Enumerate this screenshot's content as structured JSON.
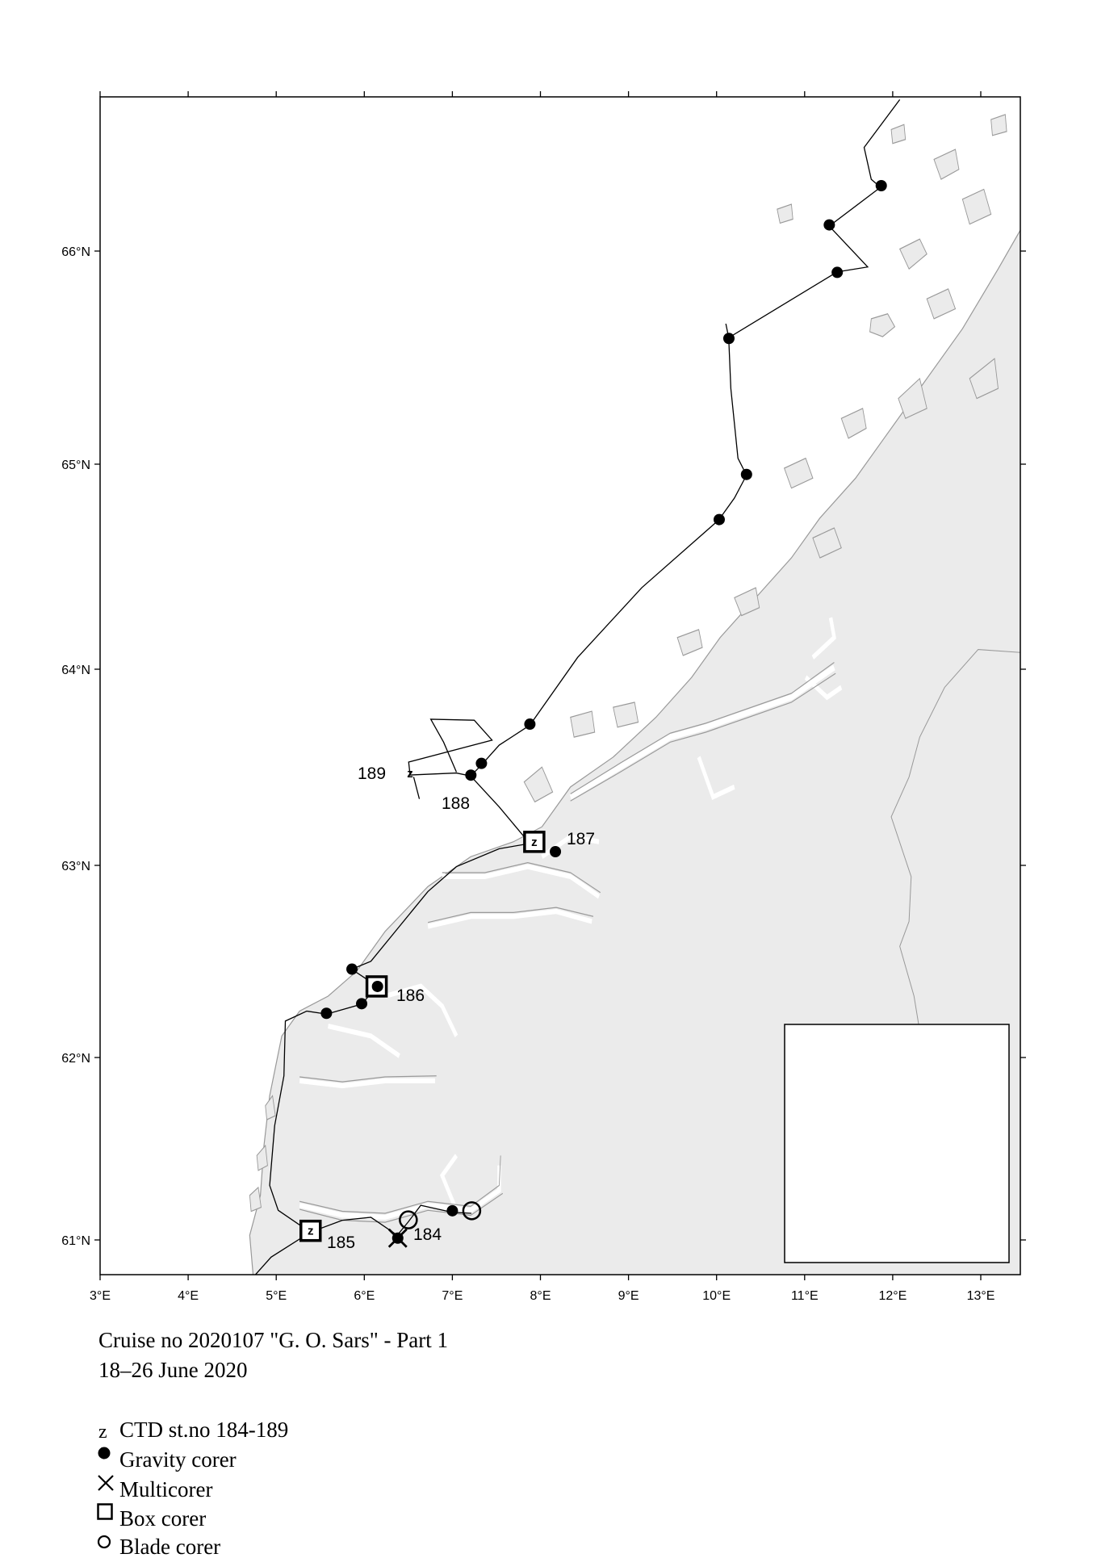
{
  "caption": {
    "title": "Cruise no 2020107  \"G. O. Sars\" - Part 1",
    "dates": "18–26 June 2020"
  },
  "axes": {
    "x_ticks": [
      3,
      4,
      5,
      6,
      7,
      8,
      9,
      10,
      11,
      12,
      13
    ],
    "x_tick_labels": [
      "3°E",
      "4°E",
      "5°E",
      "6°E",
      "7°E",
      "8°E",
      "9°E",
      "10°E",
      "11°E",
      "12°E",
      "13°E"
    ],
    "y_ticks": [
      61,
      62,
      63,
      64,
      65,
      66
    ],
    "y_tick_labels": [
      "61°N",
      "62°N",
      "63°N",
      "64°N",
      "65°N",
      "66°N"
    ],
    "lon_range": [
      3,
      13.5
    ],
    "lat_range": [
      60.85,
      66.75
    ]
  },
  "colors": {
    "land": "#ebebeb",
    "coastline": "#999999",
    "track": "#000000",
    "markers": "#000000"
  },
  "legend": [
    {
      "symbol": "z",
      "icon": "ctd-z-icon",
      "label": "CTD st.no 184-189"
    },
    {
      "symbol": "",
      "icon": "filled-circle-icon",
      "label": "Gravity corer"
    },
    {
      "symbol": "",
      "icon": "cross-icon",
      "label": "Multicorer"
    },
    {
      "symbol": "",
      "icon": "square-icon",
      "label": "Box corer"
    },
    {
      "symbol": "",
      "icon": "open-circle-icon",
      "label": "Blade corer"
    }
  ],
  "station_labels": [
    "189",
    "188",
    "187",
    "186",
    "185",
    "184"
  ],
  "stations": {
    "gravity_corer": [
      [
        11.87,
        66.3
      ],
      [
        11.28,
        66.12
      ],
      [
        11.37,
        65.9
      ],
      [
        10.14,
        65.59
      ],
      [
        10.34,
        64.95
      ],
      [
        10.03,
        64.73
      ],
      [
        7.88,
        63.72
      ],
      [
        7.33,
        63.52
      ],
      [
        7.21,
        63.46
      ],
      [
        8.17,
        63.07
      ],
      [
        5.86,
        62.46
      ],
      [
        6.15,
        62.37
      ],
      [
        5.97,
        62.28
      ],
      [
        5.57,
        62.23
      ],
      [
        7.0,
        61.16
      ],
      [
        6.38,
        61.01
      ]
    ],
    "box_corer": [
      [
        7.93,
        63.12
      ],
      [
        6.14,
        62.37
      ],
      [
        5.39,
        61.05
      ]
    ],
    "multicorer": [
      [
        6.38,
        61.01
      ]
    ],
    "blade_corer": [
      [
        6.5,
        61.11
      ],
      [
        7.22,
        61.16
      ]
    ],
    "ctd": [
      [
        6.52,
        63.47
      ],
      [
        7.93,
        63.12
      ],
      [
        5.39,
        61.05
      ]
    ]
  },
  "inset": {
    "highlight": "study-area-box"
  }
}
